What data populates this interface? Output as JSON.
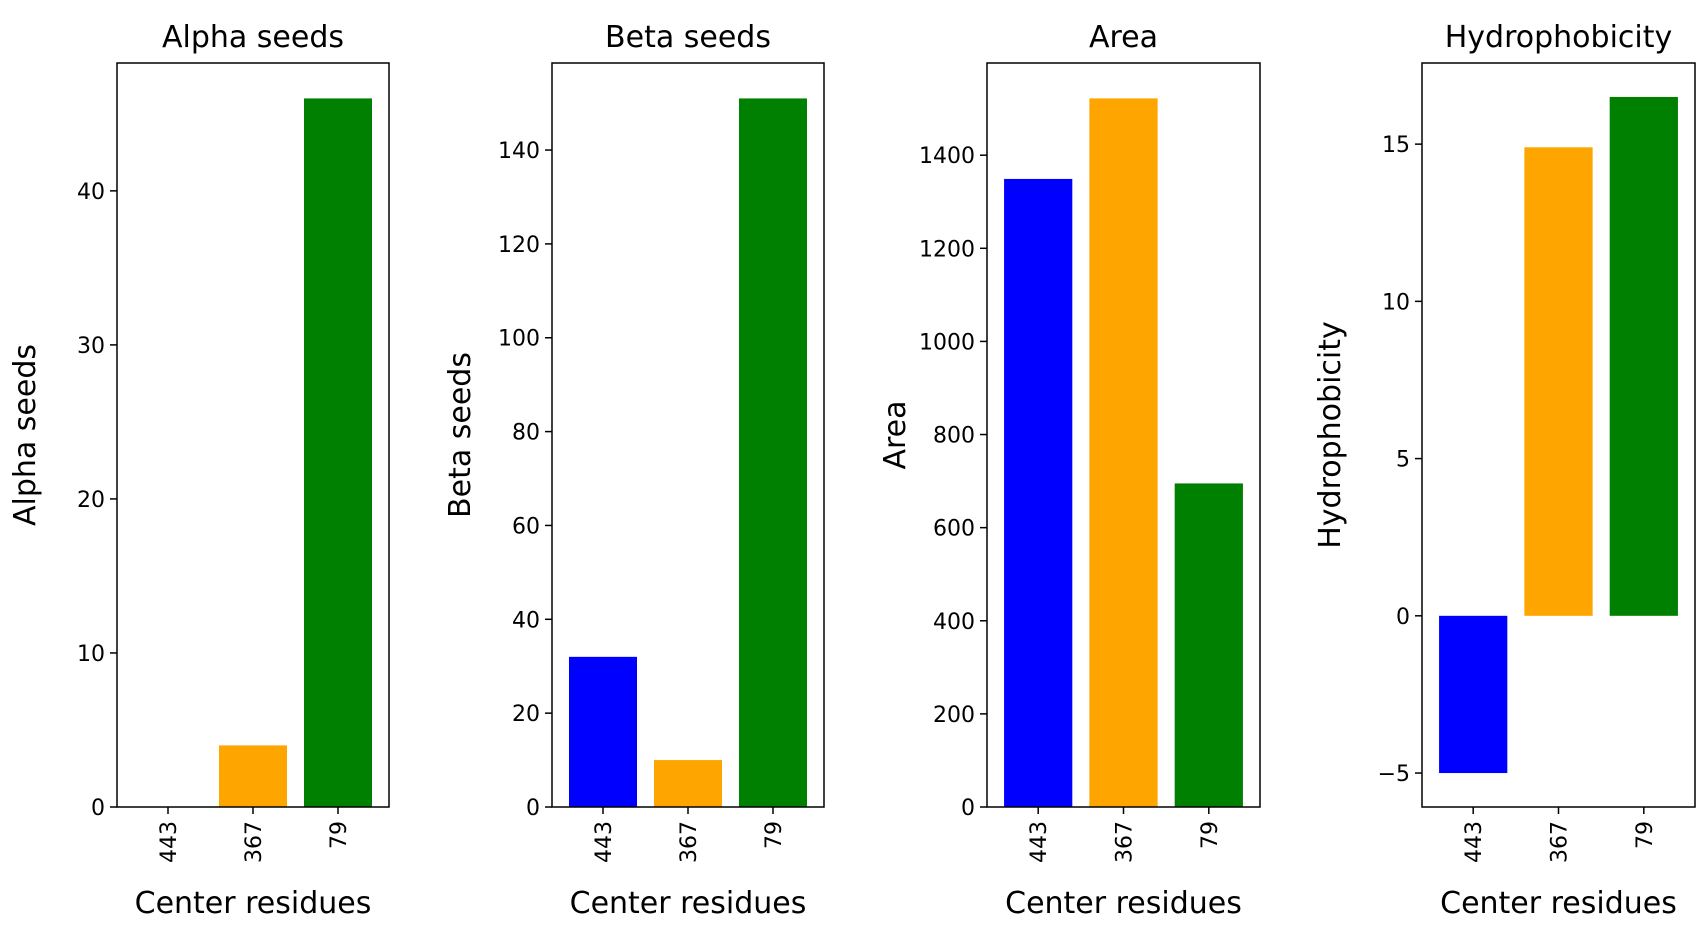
{
  "chart_data": [
    {
      "type": "bar",
      "title": "Alpha seeds",
      "xlabel": "Center residues",
      "ylabel": "Alpha seeds",
      "categories": [
        "443",
        "367",
        "79"
      ],
      "values": [
        0,
        4,
        46
      ],
      "colors": [
        "#0000ff",
        "#ffa500",
        "#008000"
      ],
      "ylim": [
        0,
        48.3
      ],
      "yticks": [
        0,
        10,
        20,
        30,
        40
      ],
      "ytick_labels": [
        "0",
        "10",
        "20",
        "30",
        "40"
      ],
      "grid": false,
      "legend": "none"
    },
    {
      "type": "bar",
      "title": "Beta seeds",
      "xlabel": "Center residues",
      "ylabel": "Beta seeds",
      "categories": [
        "443",
        "367",
        "79"
      ],
      "values": [
        32,
        10,
        151
      ],
      "colors": [
        "#0000ff",
        "#ffa500",
        "#008000"
      ],
      "ylim": [
        0,
        158.55
      ],
      "yticks": [
        0,
        20,
        40,
        60,
        80,
        100,
        120,
        140
      ],
      "ytick_labels": [
        "0",
        "20",
        "40",
        "60",
        "80",
        "100",
        "120",
        "140"
      ],
      "grid": false,
      "legend": "none"
    },
    {
      "type": "bar",
      "title": "Area",
      "xlabel": "Center residues",
      "ylabel": "Area",
      "categories": [
        "443",
        "367",
        "79"
      ],
      "values": [
        1349,
        1522,
        695
      ],
      "colors": [
        "#0000ff",
        "#ffa500",
        "#008000"
      ],
      "ylim": [
        0,
        1598
      ],
      "yticks": [
        0,
        200,
        400,
        600,
        800,
        1000,
        1200,
        1400
      ],
      "ytick_labels": [
        "0",
        "200",
        "400",
        "600",
        "800",
        "1000",
        "1200",
        "1400"
      ],
      "grid": false,
      "legend": "none"
    },
    {
      "type": "bar",
      "title": "Hydrophobicity",
      "xlabel": "Center residues",
      "ylabel": "Hydrophobicity",
      "categories": [
        "443",
        "367",
        "79"
      ],
      "values": [
        -5,
        14.9,
        16.5
      ],
      "colors": [
        "#0000ff",
        "#ffa500",
        "#008000"
      ],
      "ylim": [
        -6.08,
        17.58
      ],
      "yticks": [
        -5,
        0,
        5,
        10,
        15
      ],
      "ytick_labels": [
        "−5",
        "0",
        "5",
        "10",
        "15"
      ],
      "grid": false,
      "legend": "none"
    }
  ]
}
